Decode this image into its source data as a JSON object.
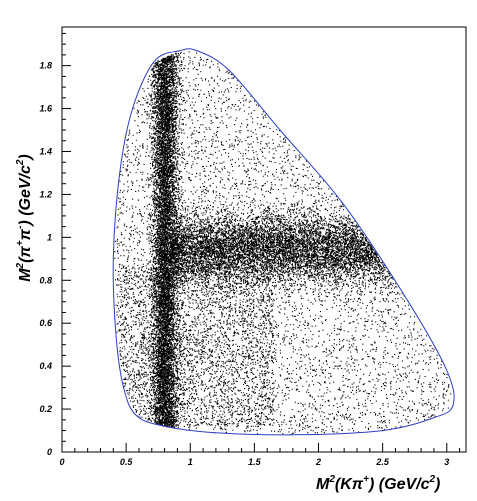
{
  "chart_data": {
    "type": "scatter",
    "title": "",
    "xlabel": {
      "prefix": "M",
      "sup1": "2",
      "mid": "(Kπ",
      "sup2": "+",
      "suffix": ")  (GeV/c",
      "sup3": "2",
      "end": ")"
    },
    "ylabel": {
      "prefix": "M",
      "sup1": "2",
      "mid": "(π",
      "sup2": "+",
      "mid2": "π",
      "sup3": "-",
      "suffix": ")  (GeV/c",
      "sup4": "2",
      "end": ")"
    },
    "xlim": [
      0,
      3.15
    ],
    "ylim": [
      0,
      1.98
    ],
    "xticks": [
      "0",
      "0.5",
      "1",
      "1.5",
      "2",
      "2.5",
      "3"
    ],
    "yticks": [
      "0",
      "0.2",
      "0.4",
      "0.6",
      "0.8",
      "1",
      "1.2",
      "1.4",
      "1.6",
      "1.8"
    ],
    "grid": false,
    "point_color": "#000000",
    "boundary_color": "#2b3fbf",
    "boundary": [
      [
        0.92,
        1.87
      ],
      [
        0.72,
        1.82
      ],
      [
        0.55,
        1.6
      ],
      [
        0.45,
        1.3
      ],
      [
        0.4,
        0.9
      ],
      [
        0.42,
        0.55
      ],
      [
        0.48,
        0.3
      ],
      [
        0.58,
        0.17
      ],
      [
        0.8,
        0.12
      ],
      [
        1.2,
        0.09
      ],
      [
        1.8,
        0.08
      ],
      [
        2.5,
        0.1
      ],
      [
        2.9,
        0.16
      ],
      [
        3.05,
        0.22
      ],
      [
        3.0,
        0.38
      ],
      [
        2.7,
        0.7
      ],
      [
        2.2,
        1.15
      ],
      [
        1.7,
        1.5
      ],
      [
        1.3,
        1.78
      ],
      [
        1.05,
        1.87
      ]
    ],
    "bands": [
      {
        "name": "vertical",
        "x_center": 0.8,
        "x_width": 0.05
      },
      {
        "name": "horizontal",
        "y_center": 0.95,
        "y_width": 0.08
      }
    ]
  }
}
